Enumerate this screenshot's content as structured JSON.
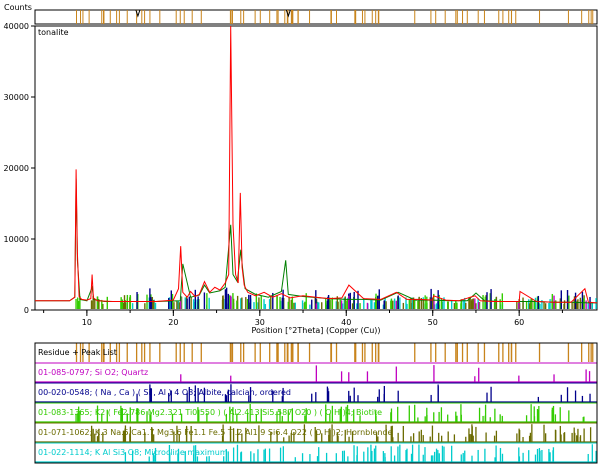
{
  "chart_data": {
    "type": "line",
    "title": "",
    "sample_label": "tonalite",
    "ylabel": "Counts",
    "xlabel": "Position [°2Theta] (Copper (Cu))",
    "xlim": [
      4,
      69
    ],
    "ylim": [
      0,
      40000
    ],
    "x_ticks": [
      10,
      20,
      30,
      40,
      50,
      60
    ],
    "y_ticks": [
      0,
      10000,
      20000,
      30000,
      40000
    ],
    "grid": false,
    "series": [
      {
        "color": "#ff0000",
        "x": [
          4.0,
          7.0,
          8.0,
          8.6,
          8.75,
          8.9,
          9.1,
          9.4,
          10.0,
          10.45,
          10.6,
          10.75,
          11.2,
          13.0,
          15.0,
          18.0,
          20.0,
          20.6,
          20.85,
          21.1,
          21.6,
          22.0,
          22.5,
          23.0,
          23.6,
          24.2,
          24.8,
          25.4,
          26.0,
          26.4,
          26.64,
          26.9,
          27.2,
          27.5,
          27.75,
          27.95,
          28.2,
          28.6,
          29.5,
          30.5,
          31.5,
          32.5,
          33.5,
          35.0,
          36.5,
          38.0,
          39.5,
          40.3,
          42.0,
          44.0,
          45.8,
          47.0,
          48.5,
          50.0,
          50.1,
          51.5,
          53.0,
          54.9,
          55.5,
          57.0,
          58.5,
          60.0,
          60.1,
          62.0,
          64.0,
          66.0,
          67.6,
          68.0,
          69.0
        ],
        "y": [
          1300,
          1300,
          1300,
          1800,
          19800,
          8000,
          1900,
          1500,
          1400,
          1600,
          5000,
          1700,
          1300,
          1200,
          1200,
          1200,
          1400,
          3000,
          9000,
          2500,
          1800,
          2600,
          1900,
          2200,
          4000,
          2500,
          3200,
          2800,
          3800,
          5000,
          40000,
          12000,
          5000,
          3800,
          16500,
          6000,
          3500,
          2500,
          2000,
          2500,
          1800,
          2300,
          1700,
          2000,
          1800,
          1600,
          1700,
          3500,
          1600,
          1500,
          2500,
          1500,
          1500,
          1400,
          2000,
          1400,
          1300,
          2000,
          1300,
          1200,
          1200,
          1200,
          2600,
          1200,
          1100,
          1100,
          3000,
          1100,
          1000
        ]
      },
      {
        "color": "#008000",
        "x": [
          4.0,
          8.0,
          8.6,
          8.75,
          8.9,
          9.2,
          10.0,
          10.6,
          10.8,
          12.0,
          18.0,
          20.8,
          21.1,
          22.0,
          23.0,
          23.6,
          24.2,
          25.4,
          26.0,
          26.64,
          26.9,
          27.4,
          27.8,
          28.0,
          28.3,
          29.5,
          31.0,
          32.5,
          33.0,
          33.3,
          35.0,
          38.0,
          40.0,
          42.0,
          44.0,
          46.0,
          48.0,
          50.0,
          52.0,
          54.0,
          55.0,
          56.0,
          58.0,
          60.0,
          62.0,
          64.0,
          66.0,
          68.0,
          69.0
        ],
        "y": [
          1300,
          1300,
          1800,
          18500,
          7000,
          1500,
          1300,
          3200,
          1500,
          1200,
          1200,
          1300,
          6500,
          1800,
          2100,
          3500,
          2400,
          2700,
          3200,
          12000,
          5000,
          4000,
          8500,
          6000,
          3000,
          2200,
          1800,
          2600,
          7000,
          2200,
          1900,
          1600,
          1500,
          1500,
          1400,
          2500,
          1400,
          1400,
          1300,
          1300,
          2400,
          1300,
          1200,
          1200,
          1200,
          1100,
          1100,
          1000,
          1000
        ]
      }
    ],
    "reference_lists": [
      {
        "label": "Residue + Peak List",
        "color": "#c8841c"
      },
      {
        "label": "01-085-0797; Si O2; Quartz",
        "color": "#c000c0"
      },
      {
        "label": "00-020-0548; ( Na , Ca ) ( Si , Al ) 4 O8; Albite, calcian, ordered",
        "color": "#00008b"
      },
      {
        "label": "01-083-1365; K2 ( Fe2.786 Mg2.321 Ti0.550 ) ( Al2.413 Si5.587 O20 ) ( O H )4; Biotite",
        "color": "#33cc00"
      },
      {
        "label": "01-071-1062; K.3 Na.5 Ca1.7 Mg3.6 Fe1.1 Fe.5 Ti.2 Al1.9 Si6.4 O22 ( O H )2; Hornblende",
        "color": "#6b6b00"
      },
      {
        "label": "01-022-1114; K Al Si3 O8; Microcline maximum",
        "color": "#00cccc"
      }
    ]
  },
  "colors": {
    "peak_list": "#c8841c",
    "quartz": "#c000c0",
    "albite": "#00008b",
    "biotite": "#33cc00",
    "hornblende": "#6b6b00",
    "microcline": "#00cccc"
  }
}
